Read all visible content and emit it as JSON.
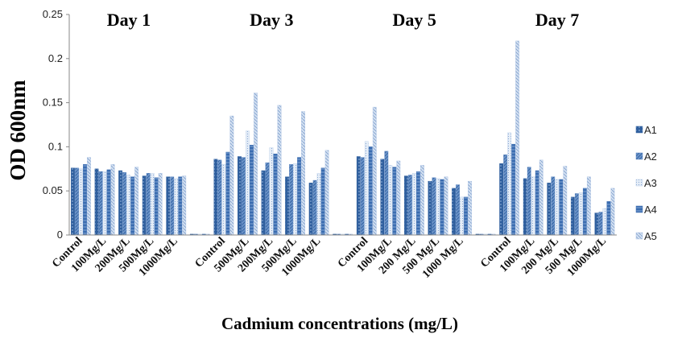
{
  "chart_data": {
    "type": "bar",
    "ylabel": "OD 600nm",
    "xlabel": "Cadmium concentrations (mg/L)",
    "ylim": [
      0,
      0.25
    ],
    "yticks": [
      "0",
      "0.05",
      "0.1",
      "0.15",
      "0.2",
      "0.25"
    ],
    "grid": false,
    "legend_position": "right",
    "series_names": [
      "A1",
      "A2",
      "A3",
      "A4",
      "A5"
    ],
    "series_colors": [
      "#2f5f9e",
      "#5b86c2",
      "#b8cde8",
      "#3a6cb0",
      "#a9c0e2"
    ],
    "categories": [
      "Control",
      "100Mg/L",
      "200Mg/L",
      "500Mg/L",
      "1000Mg/L",
      "",
      "Control",
      "500Mg/L",
      "200Mg/L",
      "500Mg/L",
      "1000Mg/L",
      "",
      "Control",
      "100Mg/L",
      "200 Mg/L",
      "500 Mg/L",
      "1000 Mg/L",
      "",
      "Control",
      "100Mg/L",
      "200 Mg/L",
      "500 Mg/L",
      "1000Mg/L"
    ],
    "groups": [
      {
        "label": "Day 1",
        "start": 0,
        "count": 5
      },
      {
        "label": "Day 3",
        "start": 6,
        "count": 5
      },
      {
        "label": "Day 5",
        "start": 12,
        "count": 5
      },
      {
        "label": "Day 7",
        "start": 18,
        "count": 5
      }
    ],
    "values": [
      [
        0.076,
        0.076,
        0.075,
        0.08,
        0.088
      ],
      [
        0.075,
        0.072,
        0.072,
        0.074,
        0.08
      ],
      [
        0.073,
        0.071,
        0.068,
        0.066,
        0.077
      ],
      [
        0.067,
        0.07,
        0.07,
        0.065,
        0.07
      ],
      [
        0.066,
        0.066,
        0.064,
        0.066,
        0.067
      ],
      [
        0.001,
        0.001,
        0.001,
        0.001,
        0.001
      ],
      [
        0.086,
        0.085,
        0.08,
        0.094,
        0.135
      ],
      [
        0.089,
        0.088,
        0.118,
        0.102,
        0.161
      ],
      [
        0.073,
        0.082,
        0.099,
        0.092,
        0.147
      ],
      [
        0.066,
        0.08,
        0.081,
        0.088,
        0.14
      ],
      [
        0.059,
        0.062,
        0.07,
        0.076,
        0.096
      ],
      [
        0.001,
        0.001,
        0.001,
        0.001,
        0.001
      ],
      [
        0.089,
        0.088,
        0.106,
        0.1,
        0.145
      ],
      [
        0.086,
        0.095,
        0.079,
        0.077,
        0.084
      ],
      [
        0.067,
        0.068,
        0.07,
        0.072,
        0.079
      ],
      [
        0.061,
        0.065,
        0.064,
        0.063,
        0.066
      ],
      [
        0.053,
        0.057,
        0.043,
        0.043,
        0.061
      ],
      [
        0.001,
        0.001,
        0.001,
        0.001,
        0.001
      ],
      [
        0.081,
        0.091,
        0.116,
        0.103,
        0.22
      ],
      [
        0.064,
        0.077,
        0.066,
        0.073,
        0.085
      ],
      [
        0.059,
        0.066,
        0.063,
        0.063,
        0.078
      ],
      [
        0.043,
        0.047,
        0.048,
        0.053,
        0.066
      ],
      [
        0.025,
        0.026,
        0.03,
        0.038,
        0.053
      ]
    ]
  }
}
